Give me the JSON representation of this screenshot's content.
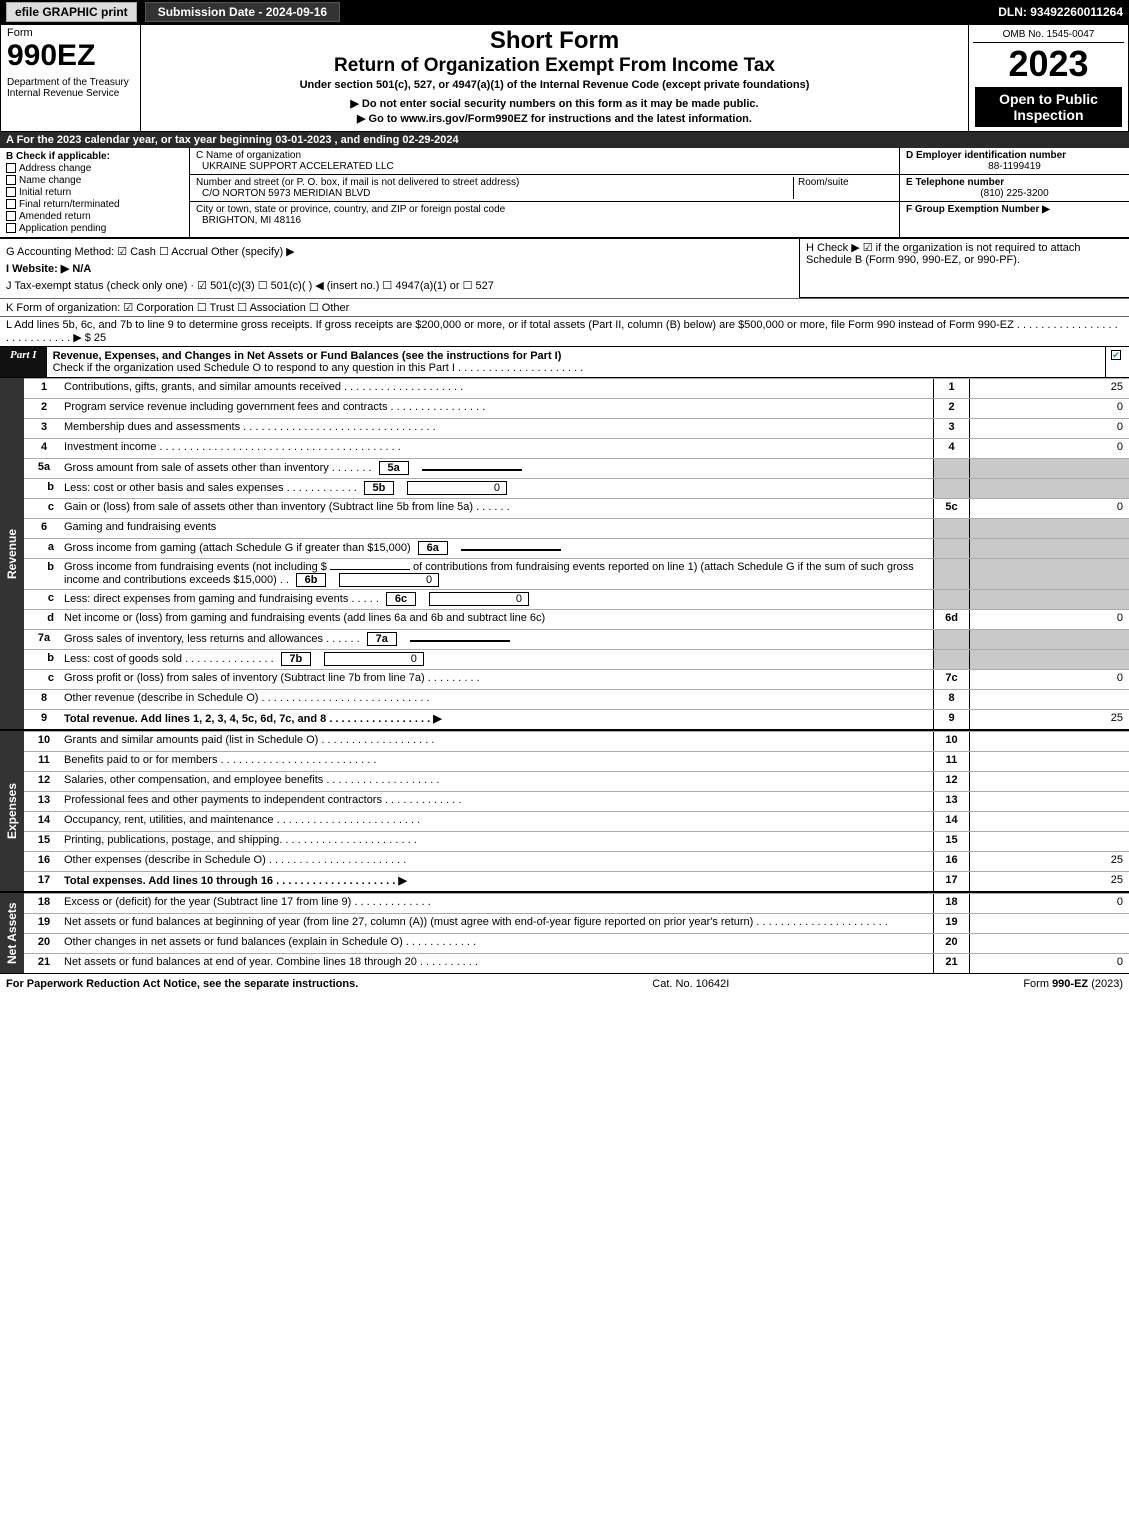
{
  "top": {
    "efile": "efile GRAPHIC print",
    "submission": "Submission Date - 2024-09-16",
    "dln": "DLN: 93492260011264"
  },
  "header": {
    "form_word": "Form",
    "form_num": "990EZ",
    "dept": "Department of the Treasury\nInternal Revenue Service",
    "title1": "Short Form",
    "title2": "Return of Organization Exempt From Income Tax",
    "under": "Under section 501(c), 527, or 4947(a)(1) of the Internal Revenue Code (except private foundations)",
    "ssn": "▶ Do not enter social security numbers on this form as it may be made public.",
    "goto": "▶ Go to www.irs.gov/Form990EZ for instructions and the latest information.",
    "omb": "OMB No. 1545-0047",
    "year": "2023",
    "open": "Open to Public Inspection"
  },
  "A": "A  For the 2023 calendar year, or tax year beginning 03-01-2023 , and ending 02-29-2024",
  "B": {
    "title": "B  Check if applicable:",
    "items": [
      "Address change",
      "Name change",
      "Initial return",
      "Final return/terminated",
      "Amended return",
      "Application pending"
    ]
  },
  "C": {
    "name_label": "C Name of organization",
    "name": "UKRAINE SUPPORT ACCELERATED LLC",
    "addr_label": "Number and street (or P. O. box, if mail is not delivered to street address)",
    "room": "Room/suite",
    "addr": "C/O NORTON 5973 MERIDIAN BLVD",
    "city_label": "City or town, state or province, country, and ZIP or foreign postal code",
    "city": "BRIGHTON, MI  48116"
  },
  "D": {
    "label": "D Employer identification number",
    "value": "88-1199419"
  },
  "E": {
    "label": "E Telephone number",
    "value": "(810) 225-3200"
  },
  "F": {
    "label": "F Group Exemption Number    ▶"
  },
  "G": "G Accounting Method:   ☑ Cash   ☐ Accrual   Other (specify) ▶",
  "H": "H    Check ▶  ☑  if the organization is not required to attach Schedule B (Form 990, 990-EZ, or 990-PF).",
  "I": "I Website: ▶ N/A",
  "J": "J Tax-exempt status (check only one) · ☑ 501(c)(3) ☐ 501(c)(  ) ◀ (insert no.) ☐ 4947(a)(1) or ☐ 527",
  "K": "K Form of organization:   ☑ Corporation   ☐ Trust   ☐ Association   ☐ Other",
  "L": "L Add lines 5b, 6c, and 7b to line 9 to determine gross receipts. If gross receipts are $200,000 or more, or if total assets (Part II, column (B) below) are $500,000 or more, file Form 990 instead of Form 990-EZ . . . . . . . . . . . . . . . . . . . . . . . . . . . .  ▶ $ 25",
  "part1": {
    "label": "Part I",
    "title": "Revenue, Expenses, and Changes in Net Assets or Fund Balances (see the instructions for Part I)",
    "sub": "Check if the organization used Schedule O to respond to any question in this Part I . . . . . . . . . . . . . . . . . . . . .",
    "checked": true
  },
  "sections": {
    "revenue_label": "Revenue",
    "expenses_label": "Expenses",
    "netassets_label": "Net Assets"
  },
  "rev": [
    {
      "n": "1",
      "d": "Contributions, gifts, grants, and similar amounts received . . . . . . . . . . . . . . . . . . . .",
      "r": "1",
      "v": "25"
    },
    {
      "n": "2",
      "d": "Program service revenue including government fees and contracts . . . . . . . . . . . . . . . .",
      "r": "2",
      "v": "0"
    },
    {
      "n": "3",
      "d": "Membership dues and assessments . . . . . . . . . . . . . . . . . . . . . . . . . . . . . . . .",
      "r": "3",
      "v": "0"
    },
    {
      "n": "4",
      "d": "Investment income . . . . . . . . . . . . . . . . . . . . . . . . . . . . . . . . . . . . . . . .",
      "r": "4",
      "v": "0"
    }
  ],
  "l5a": {
    "d": "Gross amount from sale of assets other than inventory . . . . . . .",
    "box": "5a",
    "bv": ""
  },
  "l5b": {
    "d": "Less: cost or other basis and sales expenses . . . . . . . . . . . .",
    "box": "5b",
    "bv": "0"
  },
  "l5c": {
    "d": "Gain or (loss) from sale of assets other than inventory (Subtract line 5b from line 5a) . . . . . .",
    "r": "5c",
    "v": "0"
  },
  "l6": "Gaming and fundraising events",
  "l6a": {
    "d": "Gross income from gaming (attach Schedule G if greater than $15,000)",
    "box": "6a",
    "bv": ""
  },
  "l6b": {
    "d1": "Gross income from fundraising events (not including $",
    "d2": "of contributions from fundraising events reported on line 1) (attach Schedule G if the sum of such gross income and contributions exceeds $15,000) . .",
    "box": "6b",
    "bv": "0"
  },
  "l6c": {
    "d": "Less: direct expenses from gaming and fundraising events . . . . .",
    "box": "6c",
    "bv": "0"
  },
  "l6d": {
    "d": "Net income or (loss) from gaming and fundraising events (add lines 6a and 6b and subtract line 6c)",
    "r": "6d",
    "v": "0"
  },
  "l7a": {
    "d": "Gross sales of inventory, less returns and allowances . . . . . .",
    "box": "7a",
    "bv": ""
  },
  "l7b": {
    "d": "Less: cost of goods sold         . . . . . . . . . . . . . . .",
    "box": "7b",
    "bv": "0"
  },
  "l7c": {
    "d": "Gross profit or (loss) from sales of inventory (Subtract line 7b from line 7a) . . . . . . . . .",
    "r": "7c",
    "v": "0"
  },
  "l8": {
    "d": "Other revenue (describe in Schedule O) . . . . . . . . . . . . . . . . . . . . . . . . . . . .",
    "r": "8",
    "v": ""
  },
  "l9": {
    "d": "Total revenue. Add lines 1, 2, 3, 4, 5c, 6d, 7c, and 8  . . . . . . . . . . . . . . . . .   ▶",
    "r": "9",
    "v": "25"
  },
  "exp": [
    {
      "n": "10",
      "d": "Grants and similar amounts paid (list in Schedule O) . . . . . . . . . . . . . . . . . . .",
      "r": "10",
      "v": ""
    },
    {
      "n": "11",
      "d": "Benefits paid to or for members       . . . . . . . . . . . . . . . . . . . . . . . . . .",
      "r": "11",
      "v": ""
    },
    {
      "n": "12",
      "d": "Salaries, other compensation, and employee benefits . . . . . . . . . . . . . . . . . . .",
      "r": "12",
      "v": ""
    },
    {
      "n": "13",
      "d": "Professional fees and other payments to independent contractors . . . . . . . . . . . . .",
      "r": "13",
      "v": ""
    },
    {
      "n": "14",
      "d": "Occupancy, rent, utilities, and maintenance . . . . . . . . . . . . . . . . . . . . . . . .",
      "r": "14",
      "v": ""
    },
    {
      "n": "15",
      "d": "Printing, publications, postage, and shipping. . . . . . . . . . . . . . . . . . . . . . .",
      "r": "15",
      "v": ""
    },
    {
      "n": "16",
      "d": "Other expenses (describe in Schedule O)     . . . . . . . . . . . . . . . . . . . . . . .",
      "r": "16",
      "v": "25"
    },
    {
      "n": "17",
      "d": "Total expenses. Add lines 10 through 16     . . . . . . . . . . . . . . . . . . . .   ▶",
      "r": "17",
      "v": "25"
    }
  ],
  "na": [
    {
      "n": "18",
      "d": "Excess or (deficit) for the year (Subtract line 17 from line 9)        . . . . . . . . . . . . .",
      "r": "18",
      "v": "0"
    },
    {
      "n": "19",
      "d": "Net assets or fund balances at beginning of year (from line 27, column (A)) (must agree with end-of-year figure reported on prior year's return) . . . . . . . . . . . . . . . . . . . . . .",
      "r": "19",
      "v": ""
    },
    {
      "n": "20",
      "d": "Other changes in net assets or fund balances (explain in Schedule O) . . . . . . . . . . . .",
      "r": "20",
      "v": ""
    },
    {
      "n": "21",
      "d": "Net assets or fund balances at end of year. Combine lines 18 through 20 . . . . . . . . . .",
      "r": "21",
      "v": "0"
    }
  ],
  "footer": {
    "left": "For Paperwork Reduction Act Notice, see the separate instructions.",
    "mid": "Cat. No. 10642I",
    "right": "Form 990-EZ (2023)"
  }
}
